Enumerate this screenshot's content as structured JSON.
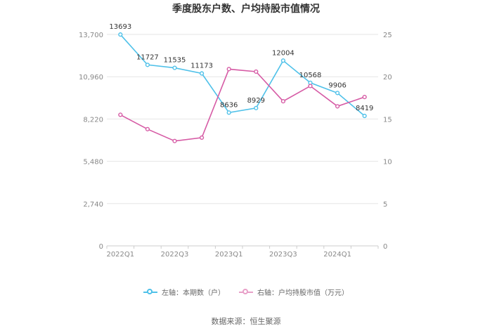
{
  "chart_data": {
    "type": "line",
    "title": "季度股东户数、户均持股市值情况",
    "categories": [
      "2022Q1",
      "2022Q2",
      "2022Q3",
      "2022Q4",
      "2023Q1",
      "2023Q2",
      "2023Q3",
      "2023Q4",
      "2024Q1",
      "2024Q2"
    ],
    "x_tick_labels": [
      "2022Q1",
      "",
      "2022Q3",
      "",
      "2023Q1",
      "",
      "2023Q3",
      "",
      "2024Q1",
      ""
    ],
    "left_axis": {
      "ylim": [
        0,
        13700
      ],
      "ticks": [
        "0",
        "2,740",
        "5,480",
        "8,220",
        "10,960",
        "13,700"
      ]
    },
    "right_axis": {
      "ylim": [
        0,
        25
      ],
      "ticks": [
        "0",
        "5",
        "10",
        "15",
        "20",
        "25"
      ]
    },
    "series": [
      {
        "name": "左轴：本期数（户）",
        "axis": "left",
        "color": "#4fc1e9",
        "values": [
          13693,
          11727,
          11535,
          11173,
          8636,
          8929,
          12004,
          10568,
          9906,
          8419
        ],
        "labels": [
          "13693",
          "11727",
          "11535",
          "11173",
          "8636",
          "8929",
          "12004",
          "10568",
          "9906",
          "8419"
        ]
      },
      {
        "name": "右轴：户均持股市值（万元）",
        "axis": "right",
        "color": "#d65ba5",
        "values": [
          15.5,
          13.8,
          12.4,
          12.8,
          20.9,
          20.6,
          17.1,
          18.9,
          16.5,
          17.6
        ]
      }
    ],
    "grid": true,
    "legend_position": "bottom"
  },
  "legend": {
    "item1": "左轴：本期数（户）",
    "item2": "右轴：户均持股市值（万元）"
  },
  "source": "数据来源：恒生聚源"
}
